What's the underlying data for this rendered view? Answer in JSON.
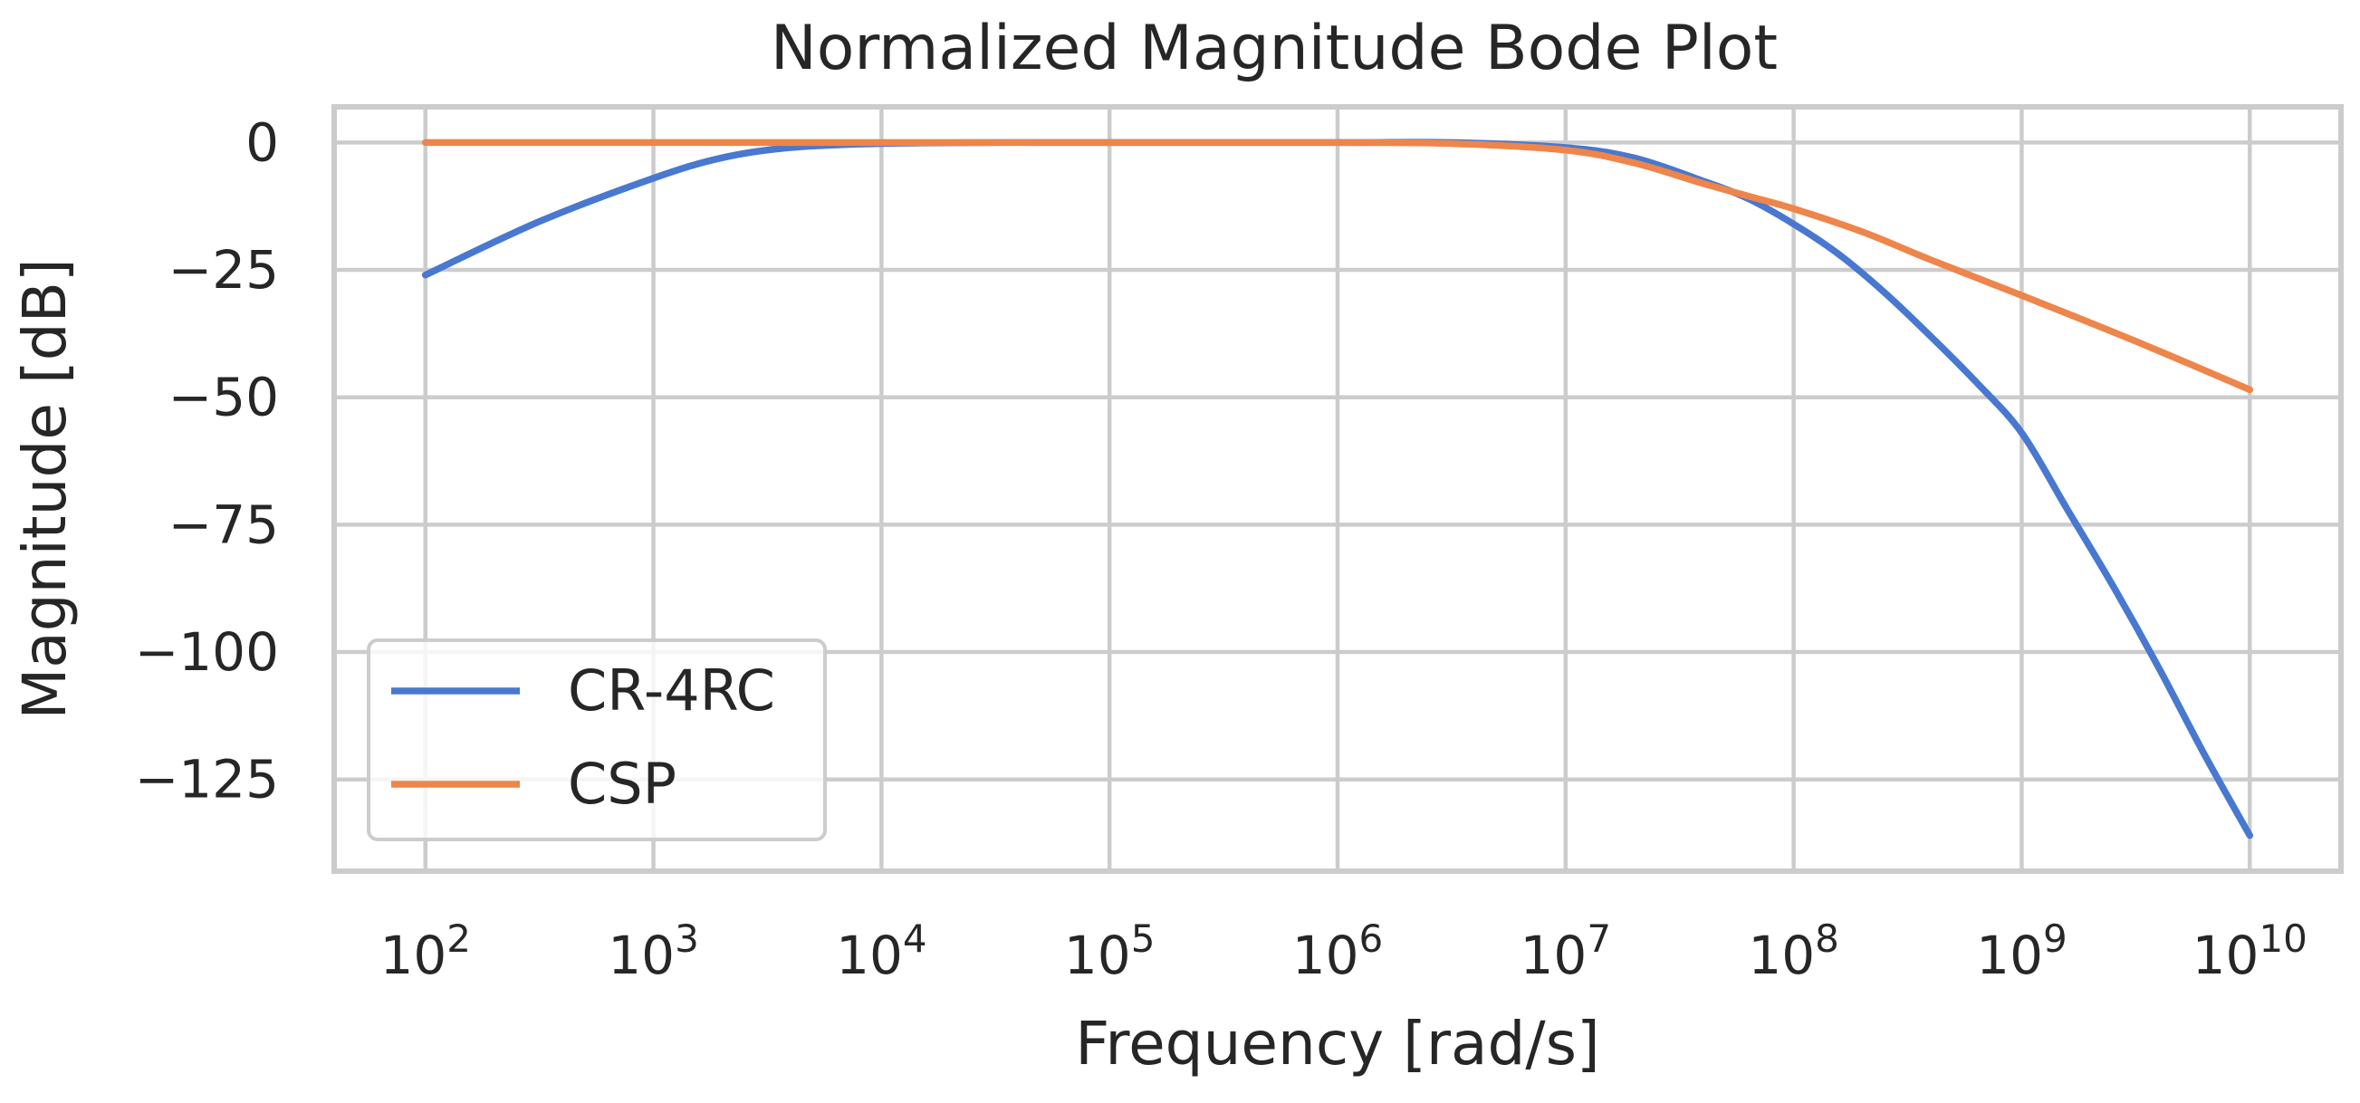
{
  "chart_data": {
    "type": "line",
    "title": "Normalized Magnitude Bode Plot",
    "xlabel": "Frequency [rad/s]",
    "ylabel": "Magnitude [dB]",
    "xscale": "log",
    "xlim_exp": [
      1.6,
      10.4
    ],
    "ylim": [
      -143,
      7
    ],
    "xticks": [
      {
        "base": "10",
        "exp": "2",
        "value": 2
      },
      {
        "base": "10",
        "exp": "3",
        "value": 3
      },
      {
        "base": "10",
        "exp": "4",
        "value": 4
      },
      {
        "base": "10",
        "exp": "5",
        "value": 5
      },
      {
        "base": "10",
        "exp": "6",
        "value": 6
      },
      {
        "base": "10",
        "exp": "7",
        "value": 7
      },
      {
        "base": "10",
        "exp": "8",
        "value": 8
      },
      {
        "base": "10",
        "exp": "9",
        "value": 9
      },
      {
        "base": "10",
        "exp": "10",
        "value": 10
      }
    ],
    "yticks": [
      {
        "label": "0",
        "value": 0
      },
      {
        "label": "−25",
        "value": -25
      },
      {
        "label": "−50",
        "value": -50
      },
      {
        "label": "−75",
        "value": -75
      },
      {
        "label": "−100",
        "value": -100
      },
      {
        "label": "−125",
        "value": -125
      }
    ],
    "grid": true,
    "legend_position": "lower-left",
    "series": [
      {
        "name": "CR-4RC",
        "color": "#4878d0",
        "x_log10": [
          2,
          2.5,
          3,
          3.3,
          3.6,
          4,
          4.5,
          5,
          6,
          6.5,
          7,
          7.3,
          7.6,
          7.8,
          8,
          8.2,
          8.4,
          8.6,
          8.8,
          9,
          9.2,
          9.4,
          9.6,
          9.8,
          10
        ],
        "y": [
          -26,
          -15.5,
          -7,
          -3,
          -1,
          -0.2,
          0,
          0,
          0,
          0,
          -1,
          -3,
          -7.5,
          -11,
          -16,
          -22,
          -29.5,
          -38,
          -47,
          -57,
          -72,
          -87,
          -103,
          -120,
          -136
        ]
      },
      {
        "name": "CSP",
        "color": "#ee854a",
        "x_log10": [
          2,
          3,
          4,
          5,
          6,
          6.5,
          7,
          7.3,
          7.6,
          7.8,
          8,
          8.3,
          8.6,
          9,
          9.5,
          10
        ],
        "y": [
          0,
          0,
          0,
          0,
          0,
          -0.2,
          -1.5,
          -4,
          -8,
          -10.5,
          -13,
          -17.5,
          -23,
          -30,
          -39,
          -48.5
        ]
      }
    ]
  }
}
